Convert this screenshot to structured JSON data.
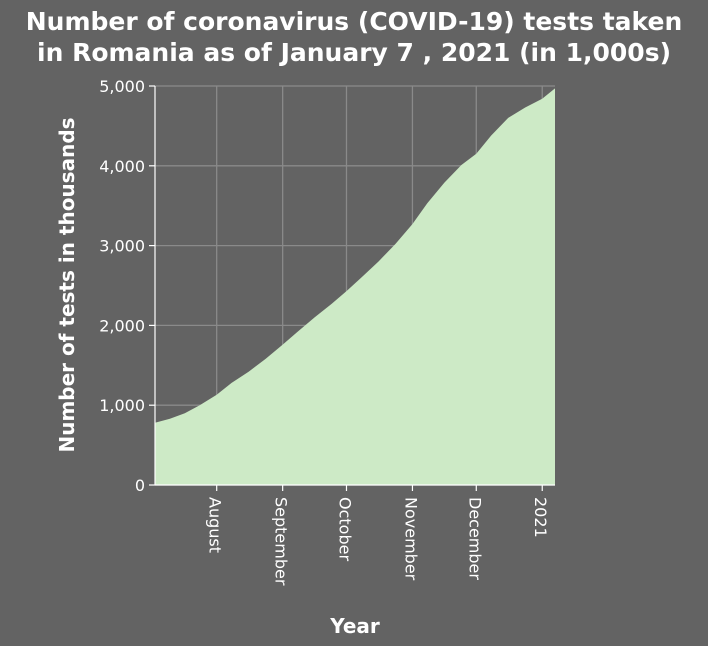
{
  "chart_data": {
    "type": "area",
    "title_line1": "Number of coronavirus (COVID-19) tests taken",
    "title_line2": "in Romania as of January 7 , 2021 (in 1,000s)",
    "xlabel": "Year",
    "ylabel": "Number of tests in thousands",
    "ylim": [
      0,
      5000
    ],
    "x_range": [
      "2020-07-03",
      "2021-01-07"
    ],
    "y_ticks": [
      {
        "value": 0,
        "label": "0"
      },
      {
        "value": 1000,
        "label": "1,000"
      },
      {
        "value": 2000,
        "label": "2,000"
      },
      {
        "value": 3000,
        "label": "3,000"
      },
      {
        "value": 4000,
        "label": "4,000"
      },
      {
        "value": 5000,
        "label": "5,000"
      }
    ],
    "x_ticks": [
      {
        "date": "2020-08-01",
        "label": "August"
      },
      {
        "date": "2020-09-01",
        "label": "September"
      },
      {
        "date": "2020-10-01",
        "label": "October"
      },
      {
        "date": "2020-11-01",
        "label": "November"
      },
      {
        "date": "2020-12-01",
        "label": "December"
      },
      {
        "date": "2021-01-01",
        "label": "2021"
      }
    ],
    "grid": true,
    "color": "#cdeac6",
    "x": [
      "2020-07-03",
      "2020-07-10",
      "2020-07-17",
      "2020-07-24",
      "2020-08-01",
      "2020-08-08",
      "2020-08-16",
      "2020-08-24",
      "2020-09-01",
      "2020-09-08",
      "2020-09-16",
      "2020-09-24",
      "2020-10-01",
      "2020-10-08",
      "2020-10-16",
      "2020-10-24",
      "2020-11-01",
      "2020-11-08",
      "2020-11-16",
      "2020-11-24",
      "2020-12-01",
      "2020-12-08",
      "2020-12-16",
      "2020-12-24",
      "2021-01-01",
      "2021-01-07"
    ],
    "values": [
      780,
      830,
      900,
      1000,
      1130,
      1280,
      1420,
      1580,
      1760,
      1920,
      2100,
      2270,
      2430,
      2600,
      2800,
      3020,
      3270,
      3530,
      3790,
      4010,
      4150,
      4380,
      4600,
      4730,
      4840,
      4970
    ]
  }
}
